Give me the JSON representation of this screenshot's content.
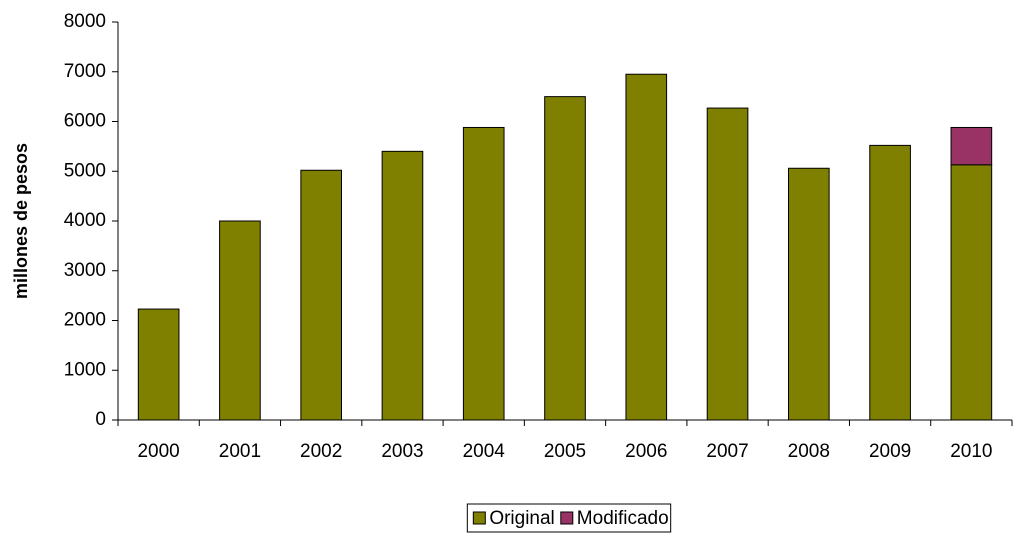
{
  "chart_data": {
    "type": "stacked-bar",
    "y_label": "millones de pesos",
    "categories": [
      "2000",
      "2001",
      "2002",
      "2003",
      "2004",
      "2005",
      "2006",
      "2007",
      "2008",
      "2009",
      "2010"
    ],
    "series": [
      {
        "name": "Original",
        "color": "#808000",
        "values": [
          2230,
          4000,
          5020,
          5400,
          5880,
          6500,
          6950,
          6270,
          5060,
          5520,
          5130
        ]
      },
      {
        "name": "Modificado",
        "color": "#993366",
        "values": [
          null,
          null,
          null,
          null,
          null,
          null,
          null,
          null,
          null,
          null,
          750
        ]
      }
    ],
    "ylim": [
      0,
      8000
    ],
    "yticks": [
      0,
      1000,
      2000,
      3000,
      4000,
      5000,
      6000,
      7000,
      8000
    ],
    "grid": false,
    "legend": "bottom"
  }
}
